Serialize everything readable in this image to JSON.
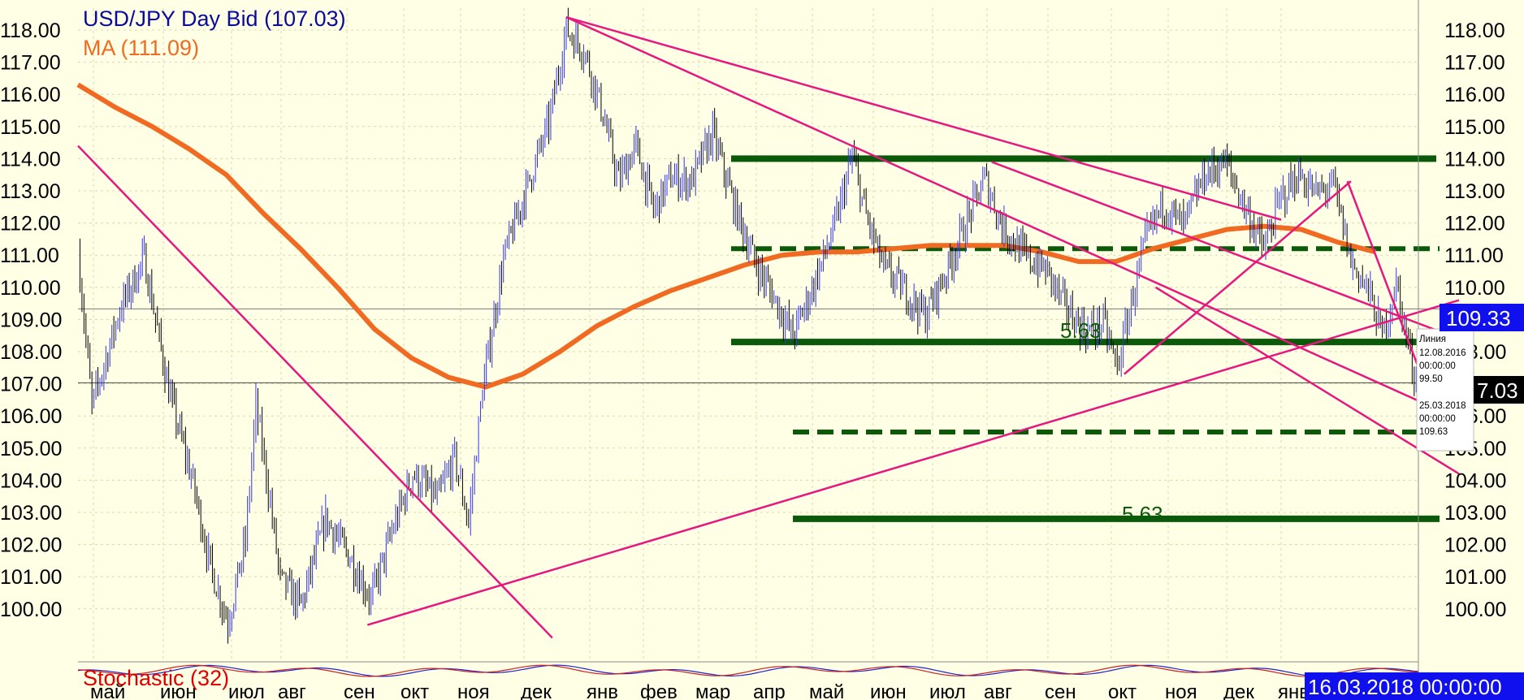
{
  "chart_data": {
    "type": "candlestick",
    "title": "USD/JPY Day Bid (107.03)",
    "ma_label": "MA (111.09)",
    "indicator_label": "Stochastic (32)",
    "y_ticks": [
      "118.00",
      "117.00",
      "116.00",
      "115.00",
      "114.00",
      "113.00",
      "112.00",
      "111.00",
      "110.00",
      "109.00",
      "108.00",
      "107.00",
      "106.00",
      "105.00",
      "104.00",
      "103.00",
      "102.00",
      "101.00",
      "100.00"
    ],
    "x_labels": [
      "май",
      "июн",
      "июл",
      "авг",
      "сен",
      "окт",
      "ноя",
      "дек",
      "янв",
      "фев",
      "мар",
      "апр",
      "май",
      "июн",
      "июл",
      "авг",
      "сен",
      "окт",
      "ноя",
      "дек",
      "янв"
    ],
    "ylim": [
      99.0,
      119.0
    ],
    "grid": true,
    "current_price": 107.03,
    "current_price_label": "7.03",
    "cursor_price_label": "109.33",
    "cursor_price": 109.33,
    "date_label": "16.03.2018 00:00:00",
    "ma_values": [
      116.3,
      115.6,
      115.0,
      114.3,
      113.5,
      112.3,
      111.2,
      110.0,
      108.7,
      107.8,
      107.2,
      106.9,
      107.3,
      108.0,
      108.8,
      109.4,
      109.9,
      110.3,
      110.7,
      111.0,
      111.1,
      111.1,
      111.2,
      111.3,
      111.3,
      111.3,
      111.1,
      110.8,
      110.8,
      111.2,
      111.5,
      111.8,
      111.9,
      111.8,
      111.4,
      111.1
    ],
    "price_path": [
      [
        0.0,
        111.1
      ],
      [
        0.4,
        106.3
      ],
      [
        1.2,
        109.3
      ],
      [
        1.9,
        110.9
      ],
      [
        2.6,
        106.8
      ],
      [
        3.3,
        103.9
      ],
      [
        3.8,
        101.3
      ],
      [
        4.3,
        99.6
      ],
      [
        4.8,
        102.1
      ],
      [
        5.1,
        106.3
      ],
      [
        5.4,
        104.2
      ],
      [
        5.8,
        100.9
      ],
      [
        6.4,
        100.1
      ],
      [
        7.1,
        102.8
      ],
      [
        7.8,
        101.6
      ],
      [
        8.4,
        100.3
      ],
      [
        9.0,
        102.4
      ],
      [
        9.6,
        104.2
      ],
      [
        10.3,
        103.4
      ],
      [
        10.8,
        104.7
      ],
      [
        11.2,
        102.7
      ],
      [
        11.6,
        106.8
      ],
      [
        12.2,
        110.9
      ],
      [
        12.9,
        113.2
      ],
      [
        13.5,
        115.1
      ],
      [
        14.0,
        118.0
      ],
      [
        14.5,
        117.4
      ],
      [
        15.0,
        115.6
      ],
      [
        15.5,
        113.3
      ],
      [
        16.0,
        114.4
      ],
      [
        16.5,
        112.4
      ],
      [
        17.0,
        113.4
      ],
      [
        17.6,
        113.3
      ],
      [
        18.2,
        114.8
      ],
      [
        18.8,
        112.6
      ],
      [
        19.4,
        110.8
      ],
      [
        19.9,
        109.8
      ],
      [
        20.5,
        108.5
      ],
      [
        21.1,
        110.1
      ],
      [
        21.7,
        111.9
      ],
      [
        22.2,
        114.1
      ],
      [
        22.6,
        112.2
      ],
      [
        23.1,
        110.6
      ],
      [
        23.7,
        109.9
      ],
      [
        24.3,
        109.1
      ],
      [
        24.9,
        110.5
      ],
      [
        25.5,
        112.1
      ],
      [
        26.0,
        113.4
      ],
      [
        26.5,
        111.9
      ],
      [
        27.2,
        110.9
      ],
      [
        27.8,
        110.5
      ],
      [
        28.3,
        109.4
      ],
      [
        28.9,
        108.6
      ],
      [
        29.4,
        108.9
      ],
      [
        29.8,
        107.5
      ],
      [
        30.2,
        109.5
      ],
      [
        30.6,
        111.4
      ],
      [
        31.1,
        112.6
      ],
      [
        31.7,
        111.9
      ],
      [
        32.3,
        113.5
      ],
      [
        32.9,
        113.9
      ],
      [
        33.5,
        112.4
      ],
      [
        34.0,
        111.2
      ],
      [
        34.5,
        112.8
      ],
      [
        35.0,
        113.5
      ],
      [
        35.5,
        112.9
      ],
      [
        36.0,
        113.2
      ],
      [
        36.5,
        110.8
      ],
      [
        37.0,
        109.9
      ],
      [
        37.4,
        108.5
      ],
      [
        37.8,
        110.1
      ],
      [
        38.2,
        107.9
      ],
      [
        38.6,
        105.9
      ],
      [
        39.1,
        106.9
      ],
      [
        39.4,
        106.6
      ]
    ],
    "annotations": {
      "fib_label_1": "5.63",
      "fib_label_2": "5.63",
      "tooltip": {
        "title": "Линия",
        "date1": "12.08.2016",
        "time1": "00:00:00",
        "value1": "99.50",
        "date2": "25.03.2018",
        "time2": "00:00:00",
        "value2": "109.63"
      },
      "horizontal_solid": [
        114.0,
        108.3,
        102.8
      ],
      "horizontal_dashed": [
        111.2,
        105.5
      ]
    },
    "colors": {
      "background": "#ffffe6",
      "candle_up": "#3333ee",
      "candle_down": "#000000",
      "ma": "#f06a22",
      "trendline": "#e8177f",
      "level": "#0a5a0a",
      "title": "#0a0a9c",
      "ma_label": "#f06a22",
      "indicator_label": "#e00000",
      "price_box": "#1010ee"
    }
  }
}
